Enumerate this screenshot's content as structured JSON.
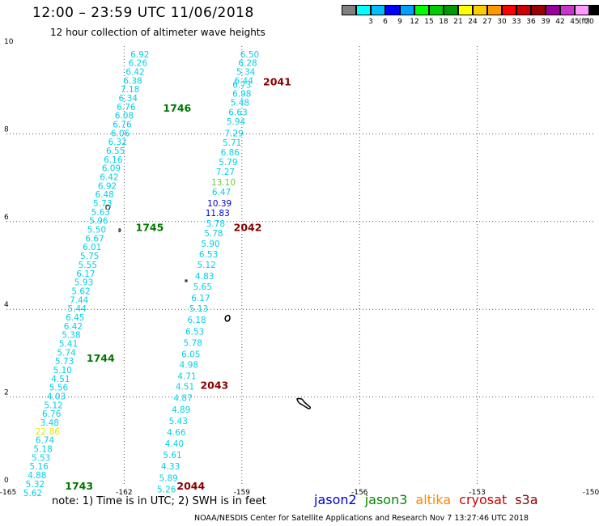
{
  "header": {
    "title": "12:00 – 23:59 UTC 11/06/2018",
    "subtitle": "12 hour collection of altimeter wave heights"
  },
  "scale": {
    "unit": "(ft)",
    "bins": [
      {
        "label": "",
        "color": "#808080"
      },
      {
        "label": "3",
        "color": "#00ffff"
      },
      {
        "label": "6",
        "color": "#00bfff"
      },
      {
        "label": "9",
        "color": "#0000ff"
      },
      {
        "label": "12",
        "color": "#00a0ff"
      },
      {
        "label": "15",
        "color": "#00ff00"
      },
      {
        "label": "18",
        "color": "#00cc00"
      },
      {
        "label": "21",
        "color": "#009900"
      },
      {
        "label": "24",
        "color": "#ffff00"
      },
      {
        "label": "27",
        "color": "#ffcc00"
      },
      {
        "label": "30",
        "color": "#ff9900"
      },
      {
        "label": "33",
        "color": "#ff0000"
      },
      {
        "label": "36",
        "color": "#cc0000"
      },
      {
        "label": "39",
        "color": "#990000"
      },
      {
        "label": "42",
        "color": "#990099"
      },
      {
        "label": "45",
        "color": "#cc33cc"
      },
      {
        "label": "70",
        "color": "#ff99ff"
      },
      {
        "label": "",
        "color": "#000000"
      }
    ]
  },
  "axes": {
    "x_ticks": [
      "-165",
      "-162",
      "-159",
      "-156",
      "-153",
      "-150"
    ],
    "y_ticks": [
      "0",
      "2",
      "4",
      "6",
      "8",
      "10"
    ],
    "lon_range": [
      -165,
      -150
    ],
    "lat_range": [
      0,
      10
    ]
  },
  "track_west": [
    {
      "lat": 9.82,
      "lon": -161.6,
      "v": "6.92"
    },
    {
      "lat": 9.62,
      "lon": -161.65,
      "v": "6.26"
    },
    {
      "lat": 9.42,
      "lon": -161.72,
      "v": "6.42"
    },
    {
      "lat": 9.22,
      "lon": -161.78,
      "v": "6.38"
    },
    {
      "lat": 9.02,
      "lon": -161.85,
      "v": "7.18"
    },
    {
      "lat": 8.82,
      "lon": -161.9,
      "v": "6.34"
    },
    {
      "lat": 8.62,
      "lon": -161.95,
      "v": "6.76"
    },
    {
      "lat": 8.42,
      "lon": -162.0,
      "v": "6.08"
    },
    {
      "lat": 8.22,
      "lon": -162.05,
      "v": "6.76"
    },
    {
      "lat": 8.02,
      "lon": -162.1,
      "v": "6.06"
    },
    {
      "lat": 7.82,
      "lon": -162.17,
      "v": "6.32"
    },
    {
      "lat": 7.62,
      "lon": -162.22,
      "v": "6.55"
    },
    {
      "lat": 7.42,
      "lon": -162.28,
      "v": "6.16"
    },
    {
      "lat": 7.22,
      "lon": -162.33,
      "v": "6.09"
    },
    {
      "lat": 7.02,
      "lon": -162.38,
      "v": "6.42"
    },
    {
      "lat": 6.82,
      "lon": -162.43,
      "v": "6.92"
    },
    {
      "lat": 6.62,
      "lon": -162.5,
      "v": "6.48"
    },
    {
      "lat": 6.42,
      "lon": -162.55,
      "v": "5.73"
    },
    {
      "lat": 6.22,
      "lon": -162.6,
      "v": "5.63"
    },
    {
      "lat": 6.02,
      "lon": -162.65,
      "v": "5.96"
    },
    {
      "lat": 5.82,
      "lon": -162.7,
      "v": "5.50"
    },
    {
      "lat": 5.62,
      "lon": -162.75,
      "v": "6.67"
    },
    {
      "lat": 5.42,
      "lon": -162.82,
      "v": "6.01"
    },
    {
      "lat": 5.22,
      "lon": -162.88,
      "v": "5.75"
    },
    {
      "lat": 5.02,
      "lon": -162.93,
      "v": "5.55"
    },
    {
      "lat": 4.82,
      "lon": -162.98,
      "v": "6.17"
    },
    {
      "lat": 4.62,
      "lon": -163.03,
      "v": "5.93"
    },
    {
      "lat": 4.42,
      "lon": -163.1,
      "v": "5.62"
    },
    {
      "lat": 4.22,
      "lon": -163.15,
      "v": "7.44"
    },
    {
      "lat": 4.02,
      "lon": -163.2,
      "v": "5.44"
    },
    {
      "lat": 3.82,
      "lon": -163.25,
      "v": "6.45"
    },
    {
      "lat": 3.62,
      "lon": -163.3,
      "v": "6.42"
    },
    {
      "lat": 3.42,
      "lon": -163.35,
      "v": "5.38"
    },
    {
      "lat": 3.22,
      "lon": -163.42,
      "v": "5.41"
    },
    {
      "lat": 3.02,
      "lon": -163.47,
      "v": "5.74"
    },
    {
      "lat": 2.82,
      "lon": -163.52,
      "v": "5.73"
    },
    {
      "lat": 2.62,
      "lon": -163.57,
      "v": "5.10"
    },
    {
      "lat": 2.42,
      "lon": -163.62,
      "v": "4.51"
    },
    {
      "lat": 2.22,
      "lon": -163.67,
      "v": "5.56"
    },
    {
      "lat": 2.02,
      "lon": -163.73,
      "v": "4.03"
    },
    {
      "lat": 1.82,
      "lon": -163.8,
      "v": "5.12"
    },
    {
      "lat": 1.62,
      "lon": -163.85,
      "v": "6.76"
    },
    {
      "lat": 1.42,
      "lon": -163.9,
      "v": "3.48"
    },
    {
      "lat": 1.22,
      "lon": -163.95,
      "v": "22.86",
      "c": "#e6e600"
    },
    {
      "lat": 1.02,
      "lon": -164.02,
      "v": "6.74"
    },
    {
      "lat": 0.82,
      "lon": -164.07,
      "v": "5.18"
    },
    {
      "lat": 0.62,
      "lon": -164.12,
      "v": "5.53"
    },
    {
      "lat": 0.42,
      "lon": -164.17,
      "v": "5.16"
    },
    {
      "lat": 0.22,
      "lon": -164.22,
      "v": "4.88"
    },
    {
      "lat": 0.02,
      "lon": -164.27,
      "v": "5.32"
    },
    {
      "lat": -0.18,
      "lon": -164.33,
      "v": "5.62"
    }
  ],
  "track_east": [
    {
      "lat": 9.82,
      "lon": -158.8,
      "v": "6.50"
    },
    {
      "lat": 9.62,
      "lon": -158.85,
      "v": "6.28"
    },
    {
      "lat": 9.42,
      "lon": -158.9,
      "v": "5.34"
    },
    {
      "lat": 9.22,
      "lon": -158.95,
      "v": "6.44"
    },
    {
      "lat": 9.12,
      "lon": -159.0,
      "v": "6.73"
    },
    {
      "lat": 8.92,
      "lon": -159.0,
      "v": "6.98"
    },
    {
      "lat": 8.72,
      "lon": -159.05,
      "v": "5.48"
    },
    {
      "lat": 8.5,
      "lon": -159.1,
      "v": "6.63"
    },
    {
      "lat": 8.28,
      "lon": -159.15,
      "v": "5.94"
    },
    {
      "lat": 8.02,
      "lon": -159.2,
      "v": "7.29"
    },
    {
      "lat": 7.8,
      "lon": -159.25,
      "v": "5.71"
    },
    {
      "lat": 7.58,
      "lon": -159.3,
      "v": "6.86"
    },
    {
      "lat": 7.36,
      "lon": -159.35,
      "v": "5.79"
    },
    {
      "lat": 7.14,
      "lon": -159.42,
      "v": "7.27"
    },
    {
      "lat": 6.9,
      "lon": -159.47,
      "v": "13.10",
      "c": "#66cc33"
    },
    {
      "lat": 6.68,
      "lon": -159.52,
      "v": "6.47"
    },
    {
      "lat": 6.42,
      "lon": -159.57,
      "v": "10.39",
      "c": "#0000cc"
    },
    {
      "lat": 6.2,
      "lon": -159.62,
      "v": "11.83",
      "c": "#0000cc"
    },
    {
      "lat": 5.96,
      "lon": -159.67,
      "v": "5.78"
    },
    {
      "lat": 5.74,
      "lon": -159.72,
      "v": "5.78"
    },
    {
      "lat": 5.5,
      "lon": -159.8,
      "v": "5.90"
    },
    {
      "lat": 5.26,
      "lon": -159.85,
      "v": "6.53"
    },
    {
      "lat": 5.02,
      "lon": -159.9,
      "v": "5.12"
    },
    {
      "lat": 4.76,
      "lon": -159.95,
      "v": "4.83"
    },
    {
      "lat": 4.52,
      "lon": -160.0,
      "v": "5.65"
    },
    {
      "lat": 4.26,
      "lon": -160.05,
      "v": "6.17"
    },
    {
      "lat": 4.02,
      "lon": -160.1,
      "v": "5.13"
    },
    {
      "lat": 3.76,
      "lon": -160.15,
      "v": "6.18"
    },
    {
      "lat": 3.5,
      "lon": -160.2,
      "v": "6.53"
    },
    {
      "lat": 3.24,
      "lon": -160.25,
      "v": "5.78"
    },
    {
      "lat": 2.98,
      "lon": -160.3,
      "v": "6.05"
    },
    {
      "lat": 2.74,
      "lon": -160.35,
      "v": "4.98"
    },
    {
      "lat": 2.48,
      "lon": -160.4,
      "v": "4.71"
    },
    {
      "lat": 2.24,
      "lon": -160.45,
      "v": "4.51"
    },
    {
      "lat": 1.98,
      "lon": -160.5,
      "v": "4.87"
    },
    {
      "lat": 1.72,
      "lon": -160.55,
      "v": "4.89"
    },
    {
      "lat": 1.46,
      "lon": -160.62,
      "v": "5.43"
    },
    {
      "lat": 1.2,
      "lon": -160.67,
      "v": "4.66"
    },
    {
      "lat": 0.94,
      "lon": -160.72,
      "v": "4.40"
    },
    {
      "lat": 0.68,
      "lon": -160.77,
      "v": "5.61"
    },
    {
      "lat": 0.42,
      "lon": -160.82,
      "v": "4.33"
    },
    {
      "lat": 0.16,
      "lon": -160.87,
      "v": "5.89"
    },
    {
      "lat": -0.1,
      "lon": -160.92,
      "v": "5.26"
    }
  ],
  "time_labels": [
    {
      "lat": 8.6,
      "lon": -160.65,
      "t": "1746",
      "c": "#007700"
    },
    {
      "lat": 5.88,
      "lon": -161.35,
      "t": "1745",
      "c": "#007700"
    },
    {
      "lat": 2.9,
      "lon": -162.6,
      "t": "1744",
      "c": "#007700"
    },
    {
      "lat": -0.02,
      "lon": -163.15,
      "t": "1743",
      "c": "#007700"
    },
    {
      "lat": 9.2,
      "lon": -158.1,
      "t": "2041",
      "c": "#880000"
    },
    {
      "lat": 5.88,
      "lon": -158.85,
      "t": "2042",
      "c": "#880000"
    },
    {
      "lat": 2.28,
      "lon": -159.7,
      "t": "2043",
      "c": "#880000"
    },
    {
      "lat": -0.02,
      "lon": -160.3,
      "t": "2044",
      "c": "#880000"
    }
  ],
  "note": "note: 1) Time is in UTC; 2) SWH is in feet",
  "legend": [
    {
      "label": "jason2",
      "color": "#0000cc"
    },
    {
      "label": "jason3",
      "color": "#008800"
    },
    {
      "label": "altika",
      "color": "#ff8800"
    },
    {
      "label": "cryosat",
      "color": "#cc0000"
    },
    {
      "label": "s3a",
      "color": "#880000"
    }
  ],
  "credit": "NOAA/NESDIS Center for Satellite Applications and Research    Nov  7 13:27:46 UTC 2018"
}
